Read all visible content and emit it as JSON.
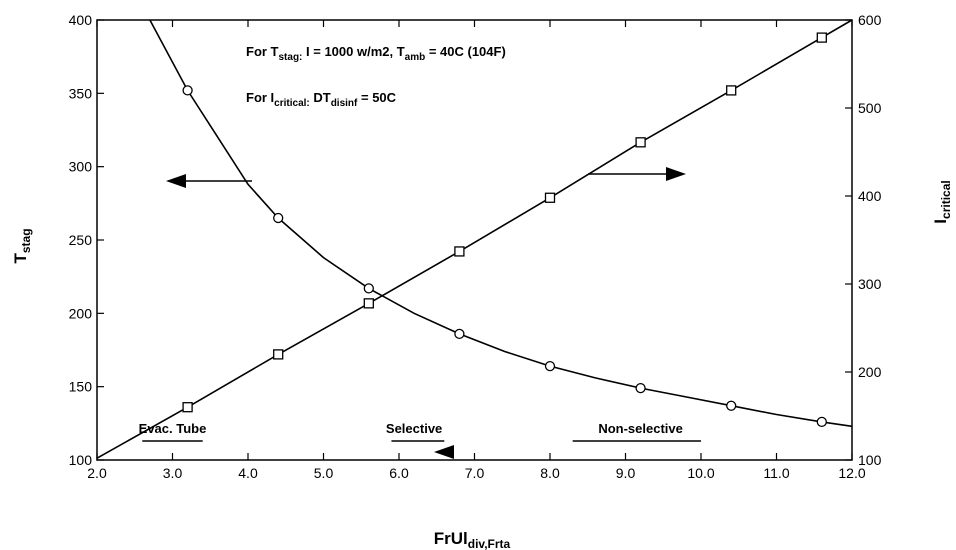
{
  "chart_data": {
    "type": "line",
    "title": "",
    "xlabel": {
      "main": "FrUl",
      "sub": "div,Frta"
    },
    "ylabel_left": {
      "main": "T",
      "sub": "stag"
    },
    "ylabel_right": {
      "main": "I",
      "sub": "critical"
    },
    "xlim": [
      2.0,
      12.0
    ],
    "ylim_left": [
      100,
      400
    ],
    "ylim_right": [
      100,
      600
    ],
    "x_ticks": [
      "2.0",
      "3.0",
      "4.0",
      "5.0",
      "6.0",
      "7.0",
      "8.0",
      "9.0",
      "10.0",
      "11.0",
      "12.0"
    ],
    "y_left_ticks": [
      "100",
      "150",
      "200",
      "250",
      "300",
      "350",
      "400"
    ],
    "y_right_ticks": [
      "100",
      "200",
      "300",
      "400",
      "500",
      "600"
    ],
    "grid": false,
    "series": [
      {
        "axis": "left",
        "marker": "circle",
        "x": [
          3.2,
          4.4,
          5.6,
          6.8,
          8.0,
          9.2,
          10.4,
          11.6
        ],
        "y": [
          352,
          265,
          217,
          186,
          164,
          149,
          137,
          126
        ],
        "curve_x": [
          2.7,
          3.2,
          3.6,
          4.0,
          4.4,
          5.0,
          5.6,
          6.2,
          6.8,
          7.4,
          8.0,
          8.6,
          9.2,
          9.8,
          10.4,
          11.0,
          11.6,
          12.0
        ],
        "curve_y": [
          402,
          352,
          320,
          288,
          265,
          238,
          217,
          200,
          186,
          174,
          164,
          156,
          149,
          143,
          137,
          131,
          126,
          123
        ]
      },
      {
        "axis": "right",
        "marker": "square",
        "x": [
          3.2,
          4.4,
          5.6,
          6.8,
          8.0,
          9.2,
          10.4,
          11.6
        ],
        "y": [
          160,
          220,
          278,
          337,
          398,
          461,
          520,
          580
        ],
        "curve_x": [
          2.0,
          3.2,
          4.4,
          5.6,
          6.8,
          8.0,
          9.2,
          10.4,
          11.6,
          12.0
        ],
        "curve_y": [
          102,
          160,
          220,
          278,
          337,
          398,
          461,
          520,
          580,
          600
        ]
      }
    ],
    "annotations": {
      "line1": {
        "pre": "For T",
        "sub": "stag:",
        "post": " I = 1000 w/m2, T",
        "sub2": "amb",
        "post2": " = 40C (104F)"
      },
      "line2": {
        "pre": "For I",
        "sub": "critical:",
        "post": " DT",
        "sub2": "disinf",
        "post2": " = 50C"
      }
    },
    "ranges": [
      {
        "label": "Evac. Tube",
        "x": 3.0,
        "from": 2.6,
        "to": 3.4
      },
      {
        "label": "Selective",
        "x": 6.2,
        "from": 5.9,
        "to": 6.6
      },
      {
        "label": "Non-selective",
        "x": 9.2,
        "from": 8.3,
        "to": 10.0
      }
    ]
  }
}
